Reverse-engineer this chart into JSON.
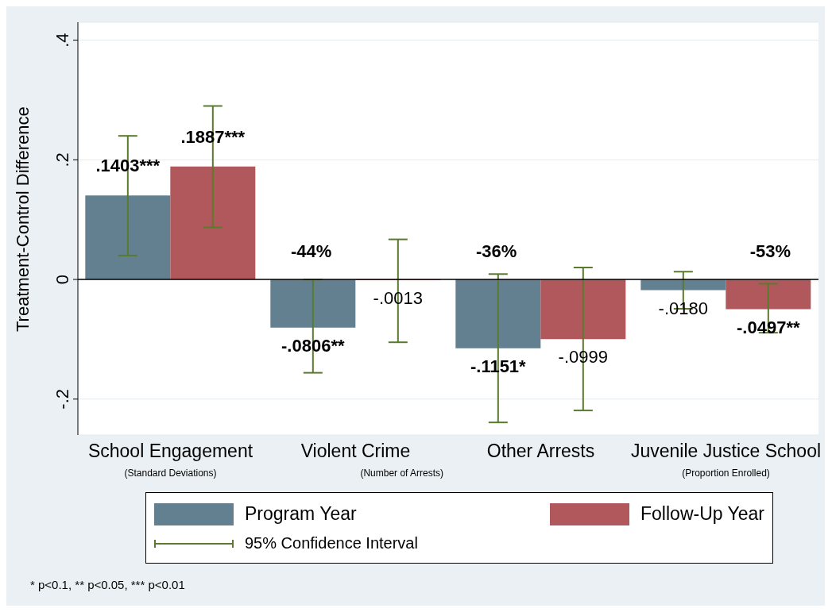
{
  "chart_data": {
    "type": "bar",
    "ylabel": "Treatment-Control Difference",
    "categories": [
      "School Engagement",
      "Violent Crime",
      "Other Arrests",
      "Juvenile Justice School"
    ],
    "series": [
      {
        "name": "Program Year",
        "color": "#62808f",
        "values": [
          0.1403,
          -0.0806,
          -0.1151,
          -0.018
        ],
        "errors": [
          [
            0.04,
            0.24
          ],
          [
            -0.156,
            0.0
          ],
          [
            -0.239,
            0.009
          ],
          [
            -0.049,
            0.013
          ]
        ],
        "value_labels": [
          ".1403***",
          "-.0806**",
          "-.1151*",
          "-.0180"
        ]
      },
      {
        "name": "Follow-Up Year",
        "color": "#b0585c",
        "values": [
          0.1887,
          -0.0013,
          -0.0999,
          -0.0497
        ],
        "errors": [
          [
            0.087,
            0.29
          ],
          [
            -0.105,
            0.067
          ],
          [
            -0.219,
            0.02
          ],
          [
            -0.089,
            -0.007
          ]
        ],
        "value_labels": [
          ".1887***",
          "-.0013",
          "-.0999",
          "-.0497**"
        ]
      }
    ],
    "ylim": [
      -0.26,
      0.43
    ],
    "yticks": [
      {
        "value": -0.2,
        "label": "-.2"
      },
      0,
      {
        "value": 0.2,
        "label": ".2"
      },
      {
        "value": 0.4,
        "label": ".4"
      }
    ],
    "grid": "y",
    "legend": "bottom",
    "ref_lines": [
      {
        "axis": "y",
        "value": 0,
        "color": "#000000"
      }
    ],
    "annotations": [
      "(Standard Deviations)",
      "(Number of Arrests)",
      "(Proportion Enrolled)",
      "-44%",
      "-36%",
      "-53%",
      "95% Confidence Interval",
      "* p<0.1, ** p<0.05, *** p<0.01"
    ]
  }
}
